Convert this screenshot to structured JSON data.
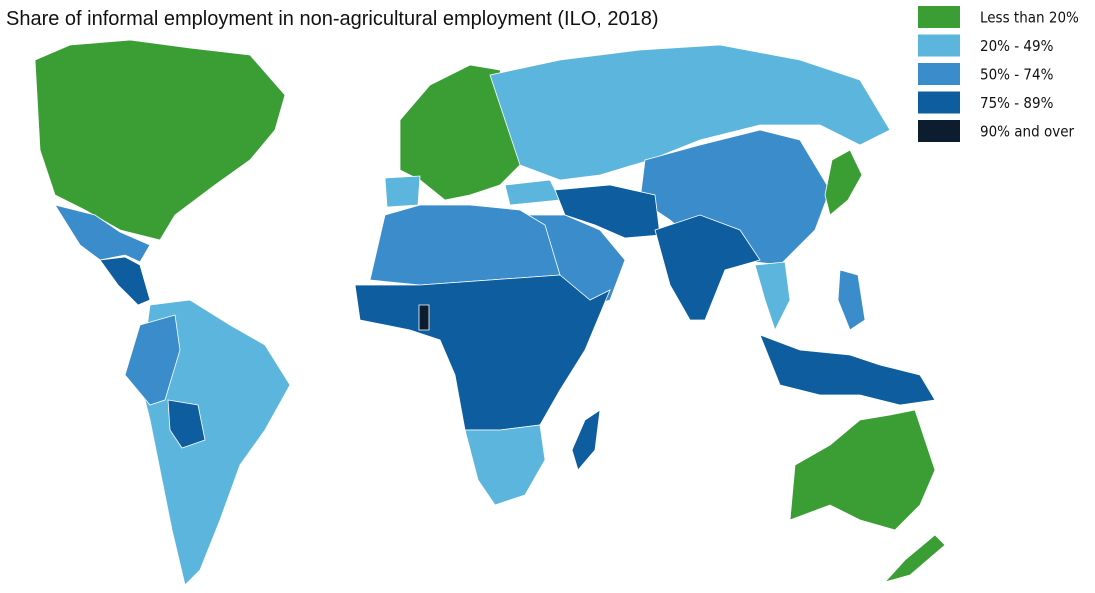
{
  "title": "Share of informal employment in non-agricultural employment (ILO, 2018)",
  "legend": [
    {
      "label": "Less than 20%",
      "color": "#3a9e35"
    },
    {
      "label": "20% - 49%",
      "color": "#5bb5dd"
    },
    {
      "label": "50% - 74%",
      "color": "#3b8ccb"
    },
    {
      "label": "75% - 89%",
      "color": "#0d5d9f"
    },
    {
      "label": "90% and over",
      "color": "#0b1d2e"
    }
  ]
}
